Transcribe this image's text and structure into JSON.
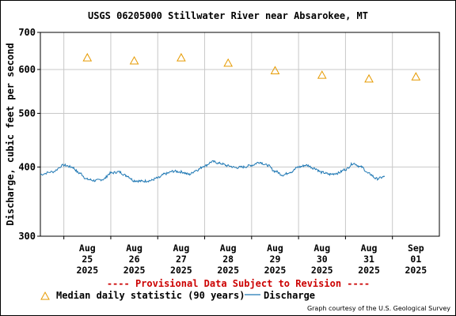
{
  "chart_data": {
    "type": "line",
    "title": "USGS 06205000 Stillwater River near Absarokee, MT",
    "ylabel": "Discharge, cubic feet per second",
    "y_scale": "log",
    "ylim": [
      300,
      700
    ],
    "y_ticks": [
      {
        "value": 300,
        "label": "300"
      },
      {
        "value": 400,
        "label": "400"
      },
      {
        "value": 500,
        "label": "500"
      },
      {
        "value": 600,
        "label": "600"
      },
      {
        "value": 700,
        "label": "700"
      }
    ],
    "xlim": [
      "2025-08-24T12:00",
      "2025-09-01T24:00"
    ],
    "x_ticks": [
      {
        "date": "2025-08-25",
        "label": [
          "Aug",
          "25",
          "2025"
        ]
      },
      {
        "date": "2025-08-26",
        "label": [
          "Aug",
          "26",
          "2025"
        ]
      },
      {
        "date": "2025-08-27",
        "label": [
          "Aug",
          "27",
          "2025"
        ]
      },
      {
        "date": "2025-08-28",
        "label": [
          "Aug",
          "28",
          "2025"
        ]
      },
      {
        "date": "2025-08-29",
        "label": [
          "Aug",
          "29",
          "2025"
        ]
      },
      {
        "date": "2025-08-30",
        "label": [
          "Aug",
          "30",
          "2025"
        ]
      },
      {
        "date": "2025-08-31",
        "label": [
          "Aug",
          "31",
          "2025"
        ]
      },
      {
        "date": "2025-09-01",
        "label": [
          "Sep",
          "01",
          "2025"
        ]
      }
    ],
    "grid": true,
    "legend_position": "bottom",
    "series": [
      {
        "name": "Median daily statistic (90 years)",
        "kind": "markers",
        "marker": "triangle",
        "color": "#e69a00",
        "points": [
          {
            "x": "2025-08-25T12:00",
            "y": 630
          },
          {
            "x": "2025-08-26T12:00",
            "y": 622
          },
          {
            "x": "2025-08-27T12:00",
            "y": 630
          },
          {
            "x": "2025-08-28T12:00",
            "y": 616
          },
          {
            "x": "2025-08-29T12:00",
            "y": 597
          },
          {
            "x": "2025-08-30T12:00",
            "y": 586
          },
          {
            "x": "2025-08-31T12:00",
            "y": 577
          },
          {
            "x": "2025-09-01T12:00",
            "y": 582
          }
        ]
      },
      {
        "name": "Discharge",
        "kind": "line",
        "color": "#1f78b4",
        "points": [
          {
            "x": "2025-08-24T12:00",
            "y": 388
          },
          {
            "x": "2025-08-24T18:00",
            "y": 392
          },
          {
            "x": "2025-08-25T00:00",
            "y": 403
          },
          {
            "x": "2025-08-25T04:00",
            "y": 400
          },
          {
            "x": "2025-08-25T08:00",
            "y": 390
          },
          {
            "x": "2025-08-25T12:00",
            "y": 380
          },
          {
            "x": "2025-08-25T16:00",
            "y": 378
          },
          {
            "x": "2025-08-25T20:00",
            "y": 380
          },
          {
            "x": "2025-08-26T00:00",
            "y": 390
          },
          {
            "x": "2025-08-26T04:00",
            "y": 392
          },
          {
            "x": "2025-08-26T08:00",
            "y": 386
          },
          {
            "x": "2025-08-26T12:00",
            "y": 378
          },
          {
            "x": "2025-08-26T16:00",
            "y": 377
          },
          {
            "x": "2025-08-26T20:00",
            "y": 378
          },
          {
            "x": "2025-08-27T00:00",
            "y": 382
          },
          {
            "x": "2025-08-27T04:00",
            "y": 389
          },
          {
            "x": "2025-08-27T08:00",
            "y": 393
          },
          {
            "x": "2025-08-27T12:00",
            "y": 392
          },
          {
            "x": "2025-08-27T16:00",
            "y": 388
          },
          {
            "x": "2025-08-27T20:00",
            "y": 395
          },
          {
            "x": "2025-08-28T00:00",
            "y": 402
          },
          {
            "x": "2025-08-28T04:00",
            "y": 409
          },
          {
            "x": "2025-08-28T08:00",
            "y": 406
          },
          {
            "x": "2025-08-28T12:00",
            "y": 402
          },
          {
            "x": "2025-08-28T16:00",
            "y": 399
          },
          {
            "x": "2025-08-28T20:00",
            "y": 400
          },
          {
            "x": "2025-08-29T00:00",
            "y": 403
          },
          {
            "x": "2025-08-29T04:00",
            "y": 408
          },
          {
            "x": "2025-08-29T08:00",
            "y": 403
          },
          {
            "x": "2025-08-29T12:00",
            "y": 393
          },
          {
            "x": "2025-08-29T16:00",
            "y": 387
          },
          {
            "x": "2025-08-29T20:00",
            "y": 392
          },
          {
            "x": "2025-08-30T00:00",
            "y": 400
          },
          {
            "x": "2025-08-30T04:00",
            "y": 403
          },
          {
            "x": "2025-08-30T08:00",
            "y": 398
          },
          {
            "x": "2025-08-30T12:00",
            "y": 391
          },
          {
            "x": "2025-08-30T16:00",
            "y": 388
          },
          {
            "x": "2025-08-30T20:00",
            "y": 390
          },
          {
            "x": "2025-08-31T00:00",
            "y": 396
          },
          {
            "x": "2025-08-31T04:00",
            "y": 406
          },
          {
            "x": "2025-08-31T08:00",
            "y": 400
          },
          {
            "x": "2025-08-31T12:00",
            "y": 389
          },
          {
            "x": "2025-08-31T16:00",
            "y": 381
          },
          {
            "x": "2025-08-31T20:00",
            "y": 384
          }
        ]
      }
    ]
  },
  "provisional_text": "---- Provisional Data Subject to Revision ----",
  "legend": {
    "median_label": "Median daily statistic (90 years)",
    "discharge_label": "Discharge"
  },
  "credit": "Graph courtesy of the U.S. Geological Survey",
  "colors": {
    "median": "#e69a00",
    "discharge": "#1f78b4",
    "grid": "#c8c8c8",
    "provisional": "#cc0000"
  }
}
